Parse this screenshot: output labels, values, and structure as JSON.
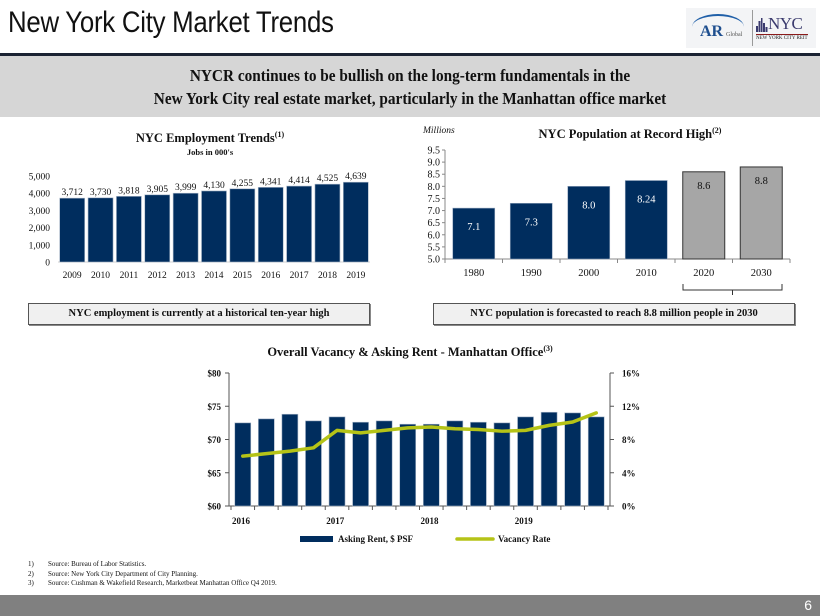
{
  "header": {
    "title": "New York City Market Trends",
    "logos": {
      "ar_text": "AR",
      "ar_sub": "Global",
      "nyc_text": "NYC",
      "nyc_sub": "NEW YORK CITY REIT"
    }
  },
  "banner": {
    "line1": "NYCR continues to be bullish on the long-term fundamentals in the",
    "line2": "New York City real estate market, particularly in the Manhattan office market"
  },
  "callouts": {
    "employment": "NYC employment is currently at a historical ten-year high",
    "population": "NYC population is forecasted to reach 8.8 million people in 2030"
  },
  "footnotes": [
    {
      "num": "1)",
      "text": "Source: Bureau of Labor Statistics."
    },
    {
      "num": "2)",
      "text": "Source: New York City Department of City Planning."
    },
    {
      "num": "3)",
      "text": "Source: Cushman & Wakefield Research, Marketbeat Manhattan Office Q4 2019."
    }
  ],
  "footer": {
    "page_number": "6"
  },
  "colors": {
    "navy": "#002d5e",
    "grey_bar": "#a6a6a6",
    "vacancy_line": "#b5c317",
    "banner_bg": "#d6d6d6",
    "footer_bg": "#808080"
  },
  "chart_data": [
    {
      "id": "employment",
      "type": "bar",
      "title": "NYC Employment Trends",
      "title_sup": "(1)",
      "subtitle": "Jobs in 000's",
      "categories": [
        "2009",
        "2010",
        "2011",
        "2012",
        "2013",
        "2014",
        "2015",
        "2016",
        "2017",
        "2018",
        "2019"
      ],
      "values": [
        3712,
        3730,
        3818,
        3905,
        3999,
        4130,
        4255,
        4341,
        4414,
        4525,
        4639
      ],
      "data_labels": [
        "3,712",
        "3,730",
        "3,818",
        "3,905",
        "3,999",
        "4,130",
        "4,255",
        "4,341",
        "4,414",
        "4,525",
        "4,639"
      ],
      "ylim": [
        0,
        5000
      ],
      "yticks": [
        0,
        1000,
        2000,
        3000,
        4000,
        5000
      ],
      "ytick_labels": [
        "0",
        "1,000",
        "2,000",
        "3,000",
        "4,000",
        "5,000"
      ],
      "xlabel": "",
      "ylabel": "",
      "grid": false
    },
    {
      "id": "population",
      "type": "bar",
      "title": "NYC Population at Record High",
      "title_sup": "(2)",
      "unit_label": "Millions",
      "categories": [
        "1980",
        "1990",
        "2000",
        "2010",
        "2020",
        "2030"
      ],
      "values": [
        7.1,
        7.3,
        8.0,
        8.24,
        8.6,
        8.8
      ],
      "data_labels": [
        "7.1",
        "7.3",
        "8.0",
        "8.24",
        "8.6",
        "8.8"
      ],
      "projected": [
        false,
        false,
        false,
        false,
        true,
        true
      ],
      "ylim": [
        5.0,
        9.5
      ],
      "yticks": [
        5.0,
        5.5,
        6.0,
        6.5,
        7.0,
        7.5,
        8.0,
        8.5,
        9.0,
        9.5
      ],
      "ytick_labels": [
        "5.0",
        "5.5",
        "6.0",
        "6.5",
        "7.0",
        "7.5",
        "8.0",
        "8.5",
        "9.0",
        "9.5"
      ],
      "annotation": "bracket under 2020-2030 (forecast)",
      "grid": false
    },
    {
      "id": "vacancy_rent",
      "type": "bar+line",
      "title": "Overall Vacancy & Asking Rent - Manhattan Office",
      "title_sup": "(3)",
      "x_labels": [
        "2016",
        "2017",
        "2018",
        "2019"
      ],
      "periods": [
        "2016 Q1",
        "2016 Q2",
        "2016 Q3",
        "2016 Q4",
        "2017 Q1",
        "2017 Q2",
        "2017 Q3",
        "2017 Q4",
        "2018 Q1",
        "2018 Q2",
        "2018 Q3",
        "2018 Q4",
        "2019 Q1",
        "2019 Q2",
        "2019 Q3",
        "2019 Q4"
      ],
      "series": [
        {
          "name": "Asking Rent, $ PSF",
          "type": "bar",
          "axis": "left",
          "values": [
            72.5,
            73.1,
            73.8,
            72.8,
            73.4,
            72.6,
            72.8,
            72.3,
            72.3,
            72.8,
            72.6,
            72.5,
            73.4,
            74.1,
            74.0,
            73.4
          ]
        },
        {
          "name": "Vacancy Rate",
          "type": "line",
          "axis": "right",
          "values": [
            6.0,
            6.3,
            6.6,
            7.0,
            9.1,
            8.8,
            9.1,
            9.4,
            9.5,
            9.3,
            9.2,
            9.0,
            9.1,
            9.7,
            10.1,
            11.2
          ]
        }
      ],
      "ylim_left": [
        60,
        80
      ],
      "yticks_left_labels": [
        "$60",
        "$65",
        "$70",
        "$75",
        "$80"
      ],
      "yticks_left": [
        60,
        65,
        70,
        75,
        80
      ],
      "ylim_right": [
        0,
        16
      ],
      "yticks_right": [
        0,
        4,
        8,
        12,
        16
      ],
      "yticks_right_labels": [
        "0%",
        "4%",
        "8%",
        "12%",
        "16%"
      ],
      "legend": [
        "Asking Rent, $ PSF",
        "Vacancy Rate"
      ],
      "legend_position": "bottom",
      "grid": false
    }
  ]
}
